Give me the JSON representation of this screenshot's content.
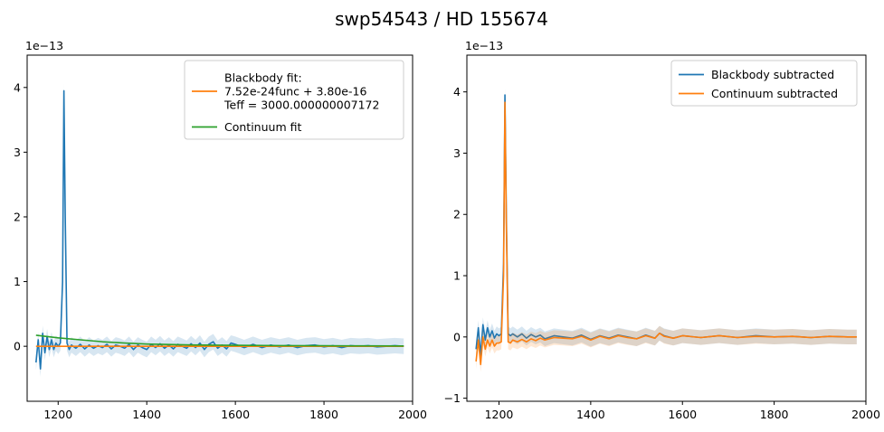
{
  "figure": {
    "title": "swp54543 / HD 155674"
  },
  "colors": {
    "c0": "#1f77b4",
    "c1": "#ff7f0e",
    "c2": "#2ca02c"
  },
  "chart_data": [
    {
      "type": "line",
      "title": "",
      "xlabel": "",
      "ylabel": "",
      "y_offset_text": "1e−13",
      "xlim": [
        1130,
        2000
      ],
      "ylim": [
        -0.85,
        4.5
      ],
      "y_scale_exponent": -13,
      "xticks": [
        1200,
        1400,
        1600,
        1800,
        2000
      ],
      "xtick_labels": [
        "1200",
        "1400",
        "1600",
        "1800",
        "2000"
      ],
      "yticks": [
        0,
        1,
        2,
        3,
        4
      ],
      "ytick_labels": [
        "0",
        "1",
        "2",
        "3",
        "4"
      ],
      "legend_position": "upper right",
      "series": [
        {
          "name": "Blackbody fit:\n7.52e-24func + 3.80e-16\nTeff = 3000.000000007172",
          "label_lines": [
            "Blackbody fit:",
            "7.52e-24func + 3.80e-16",
            "Teff = 3000.000000007172"
          ],
          "color": "#ff7f0e",
          "x": [
            1150,
            1200,
            1300,
            1400,
            1500,
            1600,
            1700,
            1800,
            1900,
            1980
          ],
          "y": [
            0.0,
            0.0,
            0.0,
            0.0,
            0.0,
            0.0,
            0.0,
            0.0,
            0.0,
            0.0
          ]
        },
        {
          "name": "Continuum fit",
          "label_lines": [
            "Continuum fit"
          ],
          "color": "#2ca02c",
          "x": [
            1150,
            1200,
            1250,
            1300,
            1350,
            1400,
            1500,
            1600,
            1700,
            1800,
            1900,
            1980
          ],
          "y": [
            0.17,
            0.13,
            0.1,
            0.07,
            0.05,
            0.035,
            0.02,
            0.015,
            0.01,
            0.008,
            0.006,
            0.005
          ]
        },
        {
          "name": "",
          "color": "#1f77b4",
          "x": [
            1150,
            1155,
            1160,
            1165,
            1170,
            1175,
            1180,
            1185,
            1190,
            1195,
            1200,
            1205,
            1210,
            1213,
            1216,
            1220,
            1225,
            1230,
            1240,
            1250,
            1260,
            1270,
            1280,
            1290,
            1300,
            1310,
            1320,
            1330,
            1340,
            1350,
            1360,
            1370,
            1380,
            1390,
            1400,
            1410,
            1420,
            1430,
            1440,
            1450,
            1460,
            1470,
            1480,
            1490,
            1500,
            1510,
            1520,
            1530,
            1540,
            1550,
            1560,
            1570,
            1580,
            1590,
            1600,
            1620,
            1640,
            1660,
            1680,
            1700,
            1720,
            1740,
            1760,
            1780,
            1800,
            1820,
            1840,
            1860,
            1880,
            1900,
            1920,
            1940,
            1960,
            1980
          ],
          "y": [
            -0.25,
            0.1,
            -0.35,
            0.2,
            -0.1,
            0.15,
            -0.05,
            0.1,
            -0.05,
            0.05,
            0.0,
            0.05,
            1.0,
            3.95,
            2.0,
            0.05,
            -0.05,
            0.02,
            -0.03,
            0.03,
            -0.04,
            0.02,
            -0.03,
            0.01,
            -0.02,
            0.03,
            -0.04,
            0.02,
            0.0,
            -0.03,
            0.03,
            -0.05,
            0.02,
            -0.02,
            -0.05,
            0.03,
            -0.02,
            0.04,
            -0.03,
            0.02,
            -0.04,
            0.03,
            0.0,
            -0.03,
            0.04,
            -0.02,
            0.05,
            -0.05,
            0.03,
            0.07,
            -0.03,
            0.02,
            -0.04,
            0.05,
            0.03,
            -0.02,
            0.03,
            -0.02,
            0.02,
            -0.01,
            0.02,
            -0.02,
            0.01,
            0.02,
            -0.01,
            0.01,
            -0.02,
            0.01,
            0.0,
            0.01,
            -0.01,
            0.0,
            0.01,
            0.0
          ]
        }
      ]
    },
    {
      "type": "line",
      "title": "",
      "xlabel": "",
      "ylabel": "",
      "y_offset_text": "1e−13",
      "xlim": [
        1130,
        2000
      ],
      "ylim": [
        -1.05,
        4.6
      ],
      "y_scale_exponent": -13,
      "xticks": [
        1200,
        1400,
        1600,
        1800,
        2000
      ],
      "xtick_labels": [
        "1200",
        "1400",
        "1600",
        "1800",
        "2000"
      ],
      "yticks": [
        -1,
        0,
        1,
        2,
        3,
        4
      ],
      "ytick_labels": [
        "−1",
        "0",
        "1",
        "2",
        "3",
        "4"
      ],
      "legend_position": "upper right",
      "series": [
        {
          "name": "Blackbody subtracted",
          "label_lines": [
            "Blackbody subtracted"
          ],
          "color": "#1f77b4",
          "x": [
            1150,
            1155,
            1160,
            1165,
            1170,
            1175,
            1180,
            1185,
            1190,
            1195,
            1200,
            1205,
            1210,
            1213,
            1216,
            1220,
            1225,
            1230,
            1240,
            1250,
            1260,
            1270,
            1280,
            1290,
            1300,
            1320,
            1340,
            1360,
            1380,
            1400,
            1420,
            1440,
            1460,
            1480,
            1500,
            1520,
            1540,
            1550,
            1560,
            1580,
            1600,
            1640,
            1680,
            1720,
            1760,
            1800,
            1840,
            1880,
            1920,
            1960,
            1980
          ],
          "y": [
            -0.2,
            0.15,
            -0.3,
            0.2,
            -0.05,
            0.15,
            0.0,
            0.1,
            -0.02,
            0.05,
            0.02,
            0.05,
            1.2,
            3.95,
            2.0,
            0.05,
            0.02,
            0.05,
            0.0,
            0.05,
            -0.02,
            0.04,
            0.0,
            0.03,
            -0.03,
            0.02,
            0.0,
            -0.02,
            0.03,
            -0.04,
            0.02,
            -0.02,
            0.03,
            0.0,
            -0.03,
            0.03,
            -0.02,
            0.06,
            0.02,
            -0.02,
            0.02,
            -0.01,
            0.02,
            -0.01,
            0.02,
            0.0,
            0.01,
            -0.01,
            0.01,
            0.0,
            0.0
          ]
        },
        {
          "name": "Continuum subtracted",
          "label_lines": [
            "Continuum subtracted"
          ],
          "color": "#ff7f0e",
          "x": [
            1150,
            1155,
            1160,
            1165,
            1170,
            1175,
            1180,
            1185,
            1190,
            1195,
            1200,
            1205,
            1210,
            1213,
            1216,
            1220,
            1225,
            1230,
            1240,
            1250,
            1260,
            1270,
            1280,
            1290,
            1300,
            1320,
            1340,
            1360,
            1380,
            1400,
            1420,
            1440,
            1460,
            1480,
            1500,
            1520,
            1540,
            1550,
            1560,
            1580,
            1600,
            1640,
            1680,
            1720,
            1760,
            1800,
            1840,
            1880,
            1920,
            1960,
            1980
          ],
          "y": [
            -0.4,
            -0.05,
            -0.45,
            0.0,
            -0.2,
            -0.05,
            -0.15,
            -0.05,
            -0.15,
            -0.1,
            -0.1,
            -0.08,
            1.0,
            3.83,
            1.85,
            -0.08,
            -0.1,
            -0.05,
            -0.08,
            -0.04,
            -0.08,
            -0.03,
            -0.06,
            -0.02,
            -0.05,
            -0.01,
            -0.02,
            -0.03,
            0.01,
            -0.05,
            0.01,
            -0.03,
            0.02,
            -0.01,
            -0.03,
            0.02,
            -0.02,
            0.06,
            0.01,
            -0.02,
            0.02,
            -0.01,
            0.02,
            -0.01,
            0.01,
            0.0,
            0.01,
            -0.01,
            0.01,
            0.0,
            0.0
          ]
        }
      ]
    }
  ]
}
